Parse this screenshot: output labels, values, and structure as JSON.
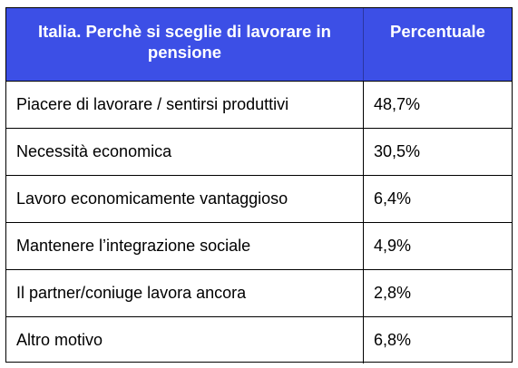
{
  "table": {
    "headers": [
      "Italia. Perchè si sceglie di lavorare in pensione",
      "Percentuale"
    ],
    "rows": [
      {
        "motivo": "Piacere di lavorare / sentirsi produttivi",
        "percentuale": "48,7%"
      },
      {
        "motivo": "Necessità economica",
        "percentuale": "30,5%"
      },
      {
        "motivo": "Lavoro economicamente vantaggioso",
        "percentuale": "6,4%"
      },
      {
        "motivo": "Mantenere l’integrazione sociale",
        "percentuale": "4,9%"
      },
      {
        "motivo": "Il partner/coniuge lavora ancora",
        "percentuale": "2,8%"
      },
      {
        "motivo": "Altro motivo",
        "percentuale": "6,8%"
      }
    ]
  },
  "colors": {
    "header_background": "#3c4fe6",
    "header_text": "#ffffff",
    "border": "#000000"
  }
}
